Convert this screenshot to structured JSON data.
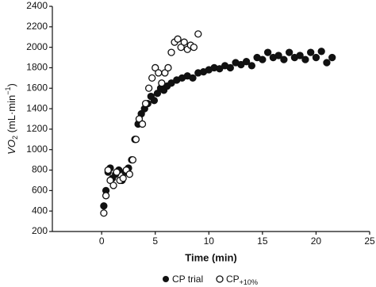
{
  "chart_data": {
    "type": "scatter",
    "x_label": "Time (min)",
    "y_label_parts": [
      "VO",
      "2",
      " (mL·min",
      "−1",
      ")"
    ],
    "xlim": [
      -4.6,
      25
    ],
    "xticks": [
      0,
      5,
      10,
      15,
      20,
      25
    ],
    "ylim": [
      200,
      2400
    ],
    "yticks": [
      200,
      400,
      600,
      800,
      1000,
      1200,
      1400,
      1600,
      1800,
      2000,
      2200,
      2400
    ],
    "grid": false,
    "series": [
      {
        "name": "CP trial",
        "color": "#111111",
        "marker": "filled",
        "x": [
          0.2,
          0.4,
          0.6,
          0.8,
          1.0,
          1.3,
          1.6,
          1.9,
          2.2,
          2.5,
          2.8,
          3.1,
          3.4,
          3.7,
          4.0,
          4.3,
          4.6,
          4.9,
          5.2,
          5.5,
          5.8,
          6.1,
          6.5,
          7,
          7.5,
          8,
          8.5,
          9,
          9.5,
          10,
          10.5,
          11,
          11.5,
          12,
          12.5,
          13,
          13.5,
          14,
          14.5,
          15,
          15.5,
          16,
          16.5,
          17,
          17.5,
          18,
          18.5,
          19,
          19.5,
          20,
          20.5,
          21,
          21.5
        ],
        "values": [
          450,
          600,
          780,
          820,
          720,
          760,
          800,
          700,
          780,
          820,
          900,
          1100,
          1250,
          1350,
          1400,
          1450,
          1520,
          1480,
          1550,
          1600,
          1580,
          1620,
          1650,
          1680,
          1700,
          1720,
          1700,
          1750,
          1760,
          1780,
          1800,
          1790,
          1820,
          1800,
          1850,
          1830,
          1860,
          1820,
          1900,
          1880,
          1950,
          1900,
          1920,
          1880,
          1950,
          1900,
          1920,
          1880,
          1950,
          1900,
          1960,
          1850,
          1900
        ]
      },
      {
        "name": "CP",
        "name_sub": "+10%",
        "color": "#111111",
        "marker": "open",
        "x": [
          0.2,
          0.4,
          0.6,
          0.8,
          1.1,
          1.4,
          1.7,
          2.0,
          2.3,
          2.6,
          2.9,
          3.2,
          3.5,
          3.8,
          4.1,
          4.4,
          4.7,
          5.0,
          5.3,
          5.6,
          5.9,
          6.2,
          6.5,
          6.8,
          7.1,
          7.4,
          7.7,
          8.0,
          8.3,
          8.6,
          9.0
        ],
        "values": [
          380,
          550,
          800,
          700,
          650,
          780,
          700,
          720,
          800,
          760,
          900,
          1100,
          1300,
          1250,
          1450,
          1600,
          1700,
          1800,
          1750,
          1650,
          1750,
          1800,
          1950,
          2050,
          2080,
          2000,
          2050,
          1980,
          2020,
          2000,
          2130
        ]
      }
    ]
  }
}
